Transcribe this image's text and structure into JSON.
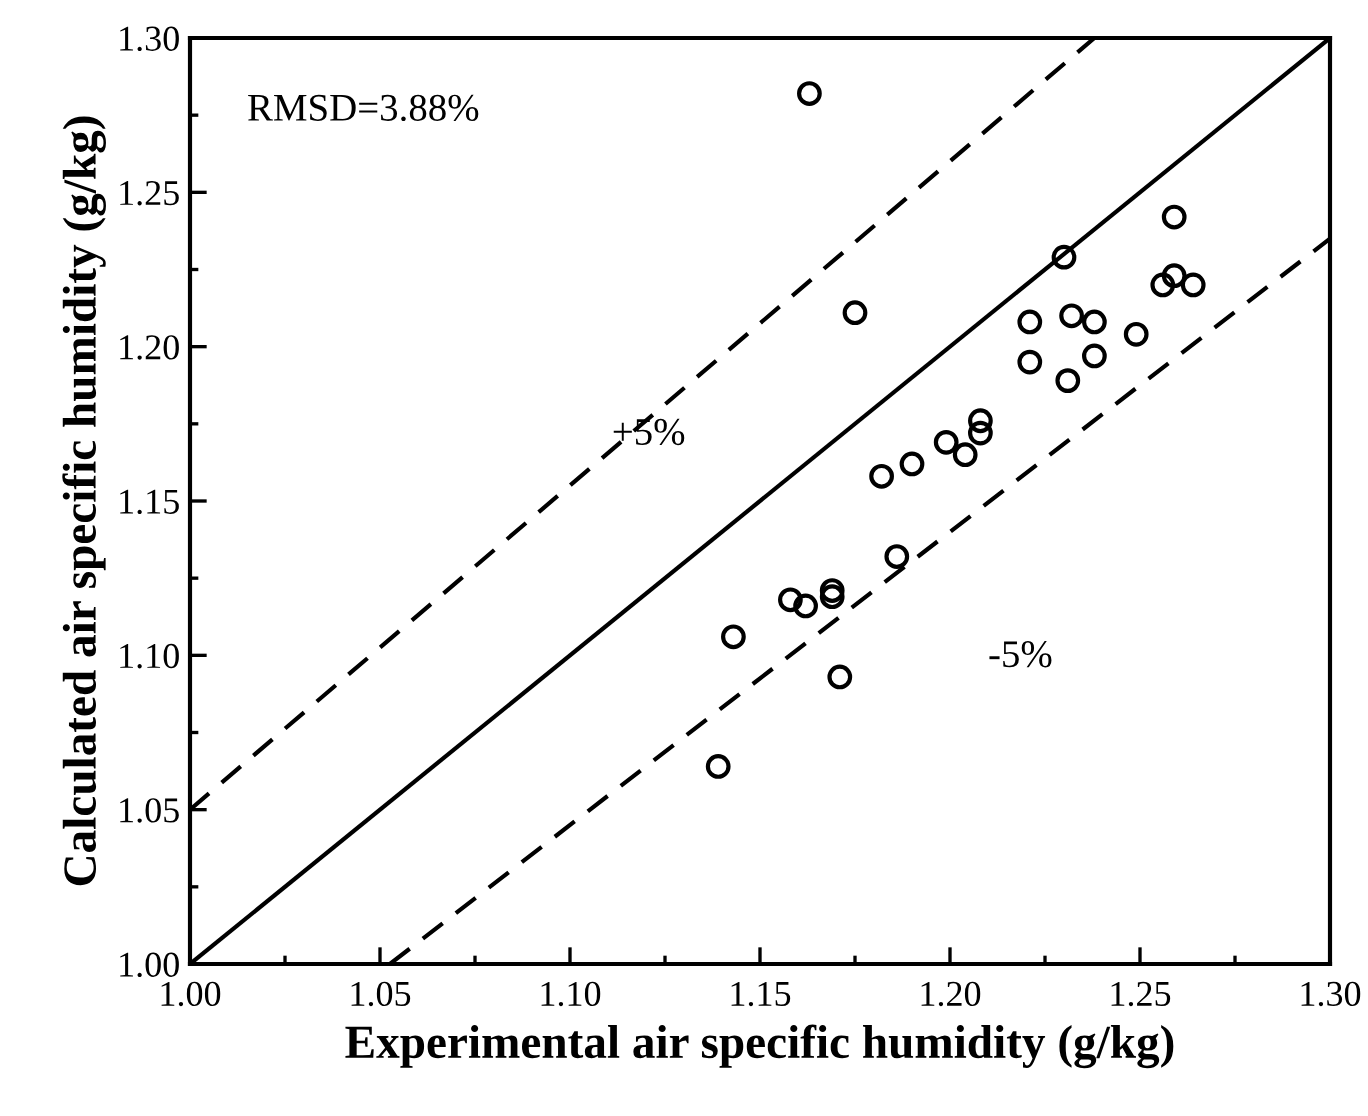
{
  "chart_data": {
    "type": "scatter",
    "xlabel": "Experimental air specific humidity (g/kg)",
    "ylabel": "Calculated air specific humidity (g/kg)",
    "xlim": [
      1.0,
      1.3
    ],
    "ylim": [
      1.0,
      1.3
    ],
    "xticks": [
      {
        "value": 1.0,
        "label": "1.00"
      },
      {
        "value": 1.05,
        "label": "1.05"
      },
      {
        "value": 1.1,
        "label": "1.10"
      },
      {
        "value": 1.15,
        "label": "1.15"
      },
      {
        "value": 1.2,
        "label": "1.20"
      },
      {
        "value": 1.25,
        "label": "1.25"
      },
      {
        "value": 1.3,
        "label": "1.30"
      }
    ],
    "yticks": [
      {
        "value": 1.0,
        "label": "1.00"
      },
      {
        "value": 1.05,
        "label": "1.05"
      },
      {
        "value": 1.1,
        "label": "1.10"
      },
      {
        "value": 1.15,
        "label": "1.15"
      },
      {
        "value": 1.2,
        "label": "1.20"
      },
      {
        "value": 1.25,
        "label": "1.25"
      },
      {
        "value": 1.3,
        "label": "1.30"
      }
    ],
    "grid": false,
    "legend": false,
    "marker": "circle",
    "series": [
      {
        "type": "scatter",
        "color": "#000000",
        "x": [
          1.163,
          1.175,
          1.23,
          1.259,
          1.221,
          1.232,
          1.238,
          1.221,
          1.231,
          1.238,
          1.249,
          1.256,
          1.259,
          1.264,
          1.199,
          1.204,
          1.208,
          1.208,
          1.182,
          1.19,
          1.186,
          1.158,
          1.162,
          1.169,
          1.169,
          1.143,
          1.171,
          1.139
        ],
        "values": [
          1.282,
          1.211,
          1.229,
          1.242,
          1.208,
          1.21,
          1.208,
          1.195,
          1.189,
          1.197,
          1.204,
          1.22,
          1.223,
          1.22,
          1.169,
          1.165,
          1.172,
          1.176,
          1.158,
          1.162,
          1.132,
          1.118,
          1.116,
          1.121,
          1.119,
          1.106,
          1.093,
          1.064
        ]
      },
      {
        "type": "line",
        "color": "#000000",
        "line_style": "solid",
        "marker": "none",
        "x": [
          1.0,
          1.3
        ],
        "values": [
          1.0,
          1.3
        ]
      },
      {
        "type": "line",
        "color": "#000000",
        "line_style": "dashed",
        "marker": "none",
        "x": [
          1.0,
          1.238
        ],
        "values": [
          1.05,
          1.3
        ]
      },
      {
        "type": "line",
        "color": "#000000",
        "line_style": "dashed",
        "marker": "none",
        "x": [
          1.0526,
          1.3
        ],
        "values": [
          1.0,
          1.235
        ]
      }
    ],
    "annotations": [
      "RMSD=3.88%",
      "+5%",
      "-5%"
    ]
  }
}
